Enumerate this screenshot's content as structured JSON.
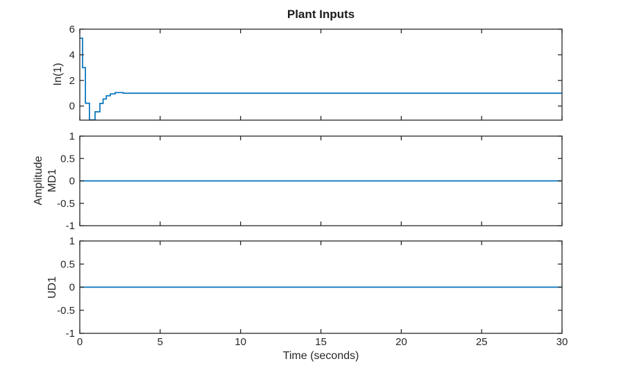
{
  "chart_data": {
    "type": "line",
    "title": "Plant Inputs",
    "xlabel": "Time (seconds)",
    "shared_ylabel": "Amplitude",
    "xlim": [
      0,
      30
    ],
    "xticks": [
      {
        "v": 0,
        "label": "0"
      },
      {
        "v": 5,
        "label": "5"
      },
      {
        "v": 10,
        "label": "10"
      },
      {
        "v": 15,
        "label": "15"
      },
      {
        "v": 20,
        "label": "20"
      },
      {
        "v": 25,
        "label": "25"
      },
      {
        "v": 30,
        "label": "30"
      }
    ],
    "line_color": "#0072BD",
    "axis_color": "#262626",
    "background_color": "#ffffff",
    "grid": false,
    "legend": null,
    "subplots": [
      {
        "name": "In(1)",
        "ylabel": "In(1)",
        "ylim": [
          -1.1,
          6
        ],
        "yticks": [
          {
            "v": 0,
            "label": "0"
          },
          {
            "v": 2,
            "label": "2"
          },
          {
            "v": 4,
            "label": "4"
          },
          {
            "v": 6,
            "label": "6"
          }
        ],
        "step": true,
        "series": [
          [
            0,
            5.3
          ],
          [
            0.17,
            3.0
          ],
          [
            0.35,
            0.22
          ],
          [
            0.6,
            -1.08
          ],
          [
            0.95,
            -0.45
          ],
          [
            1.25,
            0.2
          ],
          [
            1.45,
            0.55
          ],
          [
            1.65,
            0.8
          ],
          [
            1.9,
            0.95
          ],
          [
            2.2,
            1.05
          ],
          [
            2.7,
            1.0
          ],
          [
            30,
            1.0
          ]
        ]
      },
      {
        "name": "MD1",
        "ylabel": "MD1",
        "ylim": [
          -1,
          1
        ],
        "yticks": [
          {
            "v": -1,
            "label": "-1"
          },
          {
            "v": -0.5,
            "label": "-0.5"
          },
          {
            "v": 0,
            "label": "0"
          },
          {
            "v": 0.5,
            "label": "0.5"
          },
          {
            "v": 1,
            "label": "1"
          }
        ],
        "step": false,
        "series": [
          [
            0,
            0
          ],
          [
            30,
            0
          ]
        ]
      },
      {
        "name": "UD1",
        "ylabel": "UD1",
        "ylim": [
          -1,
          1
        ],
        "yticks": [
          {
            "v": -1,
            "label": "-1"
          },
          {
            "v": -0.5,
            "label": "-0.5"
          },
          {
            "v": 0,
            "label": "0"
          },
          {
            "v": 0.5,
            "label": "0.5"
          },
          {
            "v": 1,
            "label": "1"
          }
        ],
        "step": false,
        "series": [
          [
            0,
            0
          ],
          [
            30,
            0
          ]
        ]
      }
    ]
  }
}
